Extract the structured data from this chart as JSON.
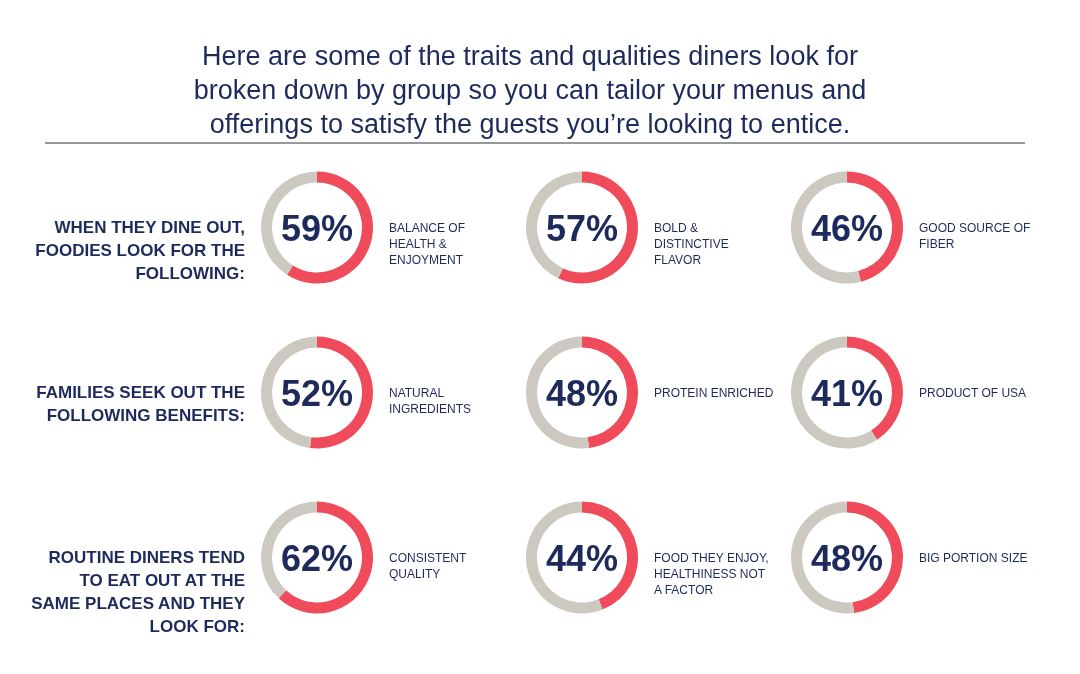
{
  "chart_data": [
    {
      "type": "other",
      "title": "Here are some of the traits and qualities diners look for broken down by group so you can tailor your menus and offerings to satisfy the guests you’re looking to entice."
    },
    {
      "type": "other",
      "title": "WHEN THEY DINE OUT, FOODIES LOOK FOR THE FOLLOWING:"
    },
    {
      "type": "donut",
      "categories": [
        "BALANCE OF HEALTH & ENJOYMENT",
        null
      ],
      "values": [
        59,
        41
      ],
      "colors": [
        "#ef4b5a",
        "#cdc8c0"
      ],
      "value_labels": [
        "59%",
        null
      ]
    },
    {
      "type": "donut",
      "categories": [
        "BOLD & DISTINCTIVE FLAVOR",
        null
      ],
      "values": [
        57,
        43
      ],
      "colors": [
        "#ef4b5a",
        "#cdc8c0"
      ],
      "value_labels": [
        "57%",
        null
      ]
    },
    {
      "type": "donut",
      "categories": [
        "GOOD SOURCE OF FIBER",
        null
      ],
      "values": [
        46,
        54
      ],
      "colors": [
        "#ef4b5a",
        "#cdc8c0"
      ],
      "value_labels": [
        "46%",
        null
      ]
    },
    {
      "type": "other",
      "title": "FAMILIES SEEK OUT THE FOLLOWING BENEFITS:"
    },
    {
      "type": "donut",
      "categories": [
        "NATURAL INGREDIENTS",
        null
      ],
      "values": [
        52,
        48
      ],
      "colors": [
        "#ef4b5a",
        "#cdc8c0"
      ],
      "value_labels": [
        "52%",
        null
      ]
    },
    {
      "type": "donut",
      "categories": [
        "PROTEIN ENRICHED",
        null
      ],
      "values": [
        48,
        52
      ],
      "colors": [
        "#ef4b5a",
        "#cdc8c0"
      ],
      "value_labels": [
        "48%",
        null
      ]
    },
    {
      "type": "donut",
      "categories": [
        "PRODUCT OF USA",
        null
      ],
      "values": [
        41,
        59
      ],
      "colors": [
        "#ef4b5a",
        "#cdc8c0"
      ],
      "value_labels": [
        "41%",
        null
      ]
    },
    {
      "type": "other",
      "title": "ROUTINE DINERS TEND TO EAT OUT AT THE SAME PLACES AND THEY LOOK FOR:"
    },
    {
      "type": "donut",
      "categories": [
        "CONSISTENT QUALITY",
        null
      ],
      "values": [
        62,
        38
      ],
      "colors": [
        "#ef4b5a",
        "#cdc8c0"
      ],
      "value_labels": [
        "62%",
        null
      ]
    },
    {
      "type": "donut",
      "categories": [
        "FOOD THEY ENJOY, HEALTHINESS NOT A FACTOR",
        null
      ],
      "values": [
        44,
        56
      ],
      "colors": [
        "#ef4b5a",
        "#cdc8c0"
      ],
      "value_labels": [
        "44%",
        null
      ]
    },
    {
      "type": "donut",
      "categories": [
        "BIG PORTION SIZE",
        null
      ],
      "values": [
        48,
        52
      ],
      "colors": [
        "#ef4b5a",
        "#cdc8c0"
      ],
      "value_labels": [
        "48%",
        null
      ]
    }
  ]
}
